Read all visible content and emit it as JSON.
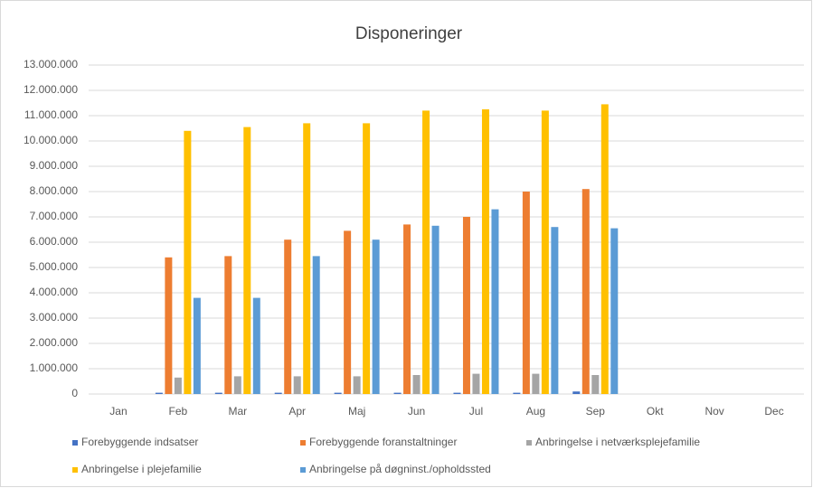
{
  "chart_data": {
    "type": "bar",
    "title": "Disponeringer",
    "categories": [
      "Jan",
      "Feb",
      "Mar",
      "Apr",
      "Maj",
      "Jun",
      "Jul",
      "Aug",
      "Sep",
      "Okt",
      "Nov",
      "Dec"
    ],
    "series": [
      {
        "name": "Forebyggende indsatser",
        "color": "#4472c4",
        "values": [
          null,
          50000,
          50000,
          50000,
          50000,
          50000,
          50000,
          50000,
          100000,
          null,
          null,
          null
        ]
      },
      {
        "name": "Forebyggende foranstaltninger",
        "color": "#ed7d31",
        "values": [
          null,
          5400000,
          5450000,
          6100000,
          6450000,
          6700000,
          7000000,
          8000000,
          8100000,
          null,
          null,
          null
        ]
      },
      {
        "name": "Anbringelse i netværksplejefamilie",
        "color": "#a5a5a5",
        "values": [
          null,
          650000,
          700000,
          700000,
          700000,
          750000,
          800000,
          800000,
          750000,
          null,
          null,
          null
        ]
      },
      {
        "name": "Anbringelse i plejefamilie",
        "color": "#ffc000",
        "values": [
          null,
          10400000,
          10550000,
          10700000,
          10700000,
          11200000,
          11250000,
          11200000,
          11450000,
          null,
          null,
          null
        ]
      },
      {
        "name": "Anbringelse på døgninst./opholdssted",
        "color": "#5b9bd5",
        "values": [
          null,
          3800000,
          3800000,
          5450000,
          6100000,
          6650000,
          7300000,
          6600000,
          6550000,
          null,
          null,
          null
        ]
      }
    ],
    "ylim": [
      0,
      13000000
    ],
    "yticks": [
      0,
      {
        "value": 1000000,
        "label": "1.000.000"
      },
      {
        "value": 2000000,
        "label": "2.000.000"
      },
      {
        "value": 3000000,
        "label": "3.000.000"
      },
      {
        "value": 4000000,
        "label": "4.000.000"
      },
      {
        "value": 5000000,
        "label": "5.000.000"
      },
      {
        "value": 6000000,
        "label": "6.000.000"
      },
      {
        "value": 7000000,
        "label": "7.000.000"
      },
      {
        "value": 8000000,
        "label": "8.000.000"
      },
      {
        "value": 9000000,
        "label": "9.000.000"
      },
      {
        "value": 10000000,
        "label": "10.000.000"
      },
      {
        "value": 11000000,
        "label": "11.000.000"
      },
      {
        "value": 12000000,
        "label": "12.000.000"
      },
      {
        "value": 13000000,
        "label": "13.000.000"
      }
    ],
    "grid": true,
    "legend": "bottom"
  }
}
